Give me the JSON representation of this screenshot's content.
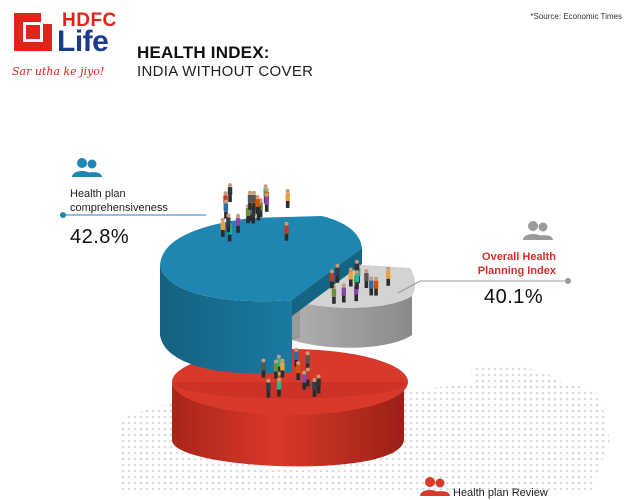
{
  "brand": {
    "line1": "HDFC",
    "line2": "Life",
    "tagline": "Sar utha ke jiyo!",
    "red": "#e2231a",
    "blue": "#1a3a8a"
  },
  "source": "*Source: Economic Times",
  "chart_data": {
    "type": "pie",
    "title": "HEALTH INDEX:",
    "subtitle": "INDIA WITHOUT COVER",
    "slices": [
      {
        "label": "Health plan comprehensiveness",
        "value": 42.8,
        "display": "42.8%",
        "color": "#1e86b0"
      },
      {
        "label": "Overall Health Planning Index",
        "value": 40.1,
        "display": "40.1%",
        "color": "#c8c8c8"
      },
      {
        "label": "Health plan Review",
        "value": null,
        "display": "",
        "color": "#d8392b"
      }
    ],
    "legend": "none"
  },
  "labels": {
    "comprehensiveness": {
      "line1": "Health plan",
      "line2": "comprehensiveness",
      "value": "42.8%"
    },
    "overall": {
      "line1": "Overall Health",
      "line2": "Planning Index",
      "value": "40.1%"
    },
    "review": {
      "line1": "Health plan Review"
    }
  },
  "icons": [
    "people-icon",
    "people-icon",
    "people-icon"
  ]
}
